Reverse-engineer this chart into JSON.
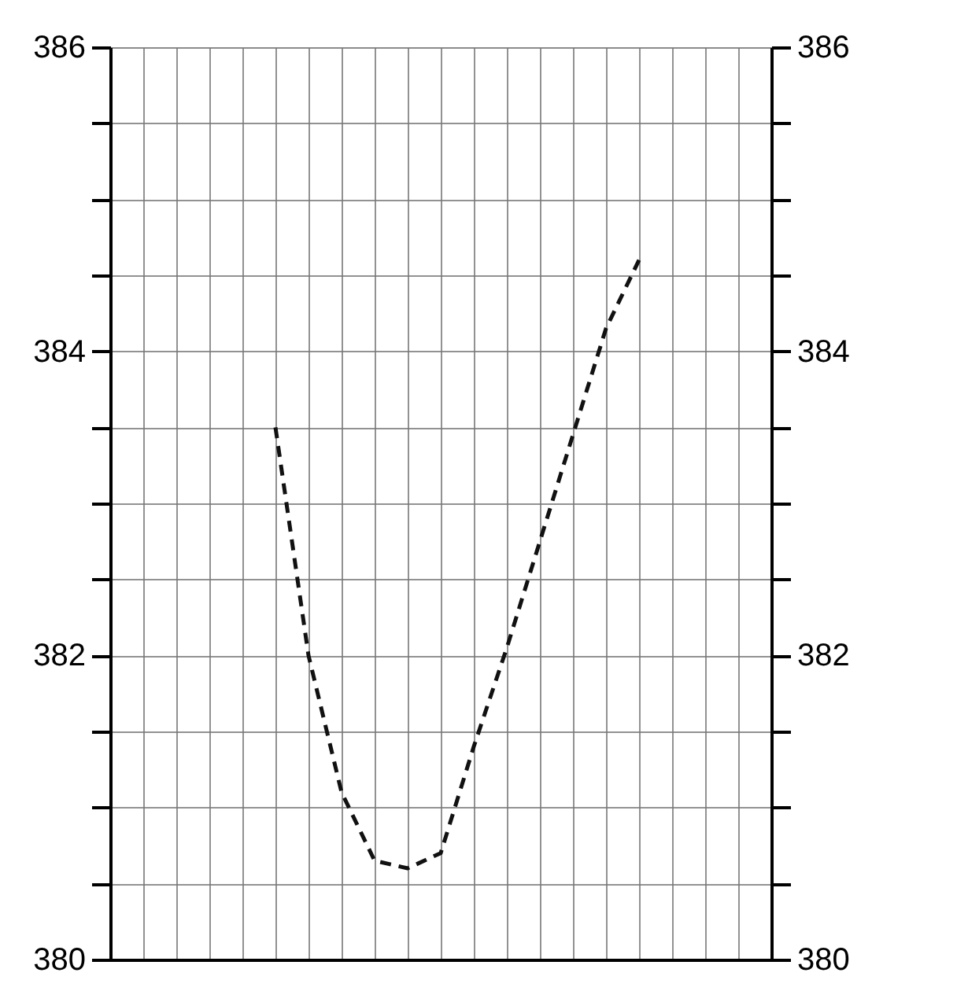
{
  "chart_data": {
    "type": "line",
    "categories": [
      null,
      null,
      null,
      null,
      null,
      null,
      null,
      null,
      null,
      null,
      null,
      null,
      null,
      null,
      null,
      null,
      null,
      null,
      null,
      null,
      null
    ],
    "series": [
      {
        "color": "#111111",
        "values": [
          null,
          null,
          null,
          null,
          null,
          383.5,
          382.0,
          381.1,
          380.65,
          380.6,
          380.7,
          381.4,
          382.05,
          382.75,
          383.45,
          384.15,
          384.6,
          null,
          null,
          null,
          null
        ]
      }
    ],
    "line_style": "dashed",
    "marker": "none",
    "grid": true,
    "tick_labels": "y",
    "ylim": [
      380,
      386
    ],
    "yticks": [
      380,
      {
        "value": 380.5,
        "label": null
      },
      {
        "value": 381,
        "label": null
      },
      {
        "value": 381.5,
        "label": null
      },
      382,
      {
        "value": 382.5,
        "label": null
      },
      {
        "value": 383,
        "label": null
      },
      {
        "value": 383.5,
        "label": null
      },
      384,
      {
        "value": 384.5,
        "label": null
      },
      {
        "value": 385,
        "label": null
      },
      {
        "value": 385.5,
        "label": null
      },
      386
    ],
    "y2lim": [
      380,
      386
    ],
    "y2ticks": [
      380,
      {
        "value": 380.5,
        "label": null
      },
      {
        "value": 381,
        "label": null
      },
      {
        "value": 381.5,
        "label": null
      },
      382,
      {
        "value": 382.5,
        "label": null
      },
      {
        "value": 383,
        "label": null
      },
      {
        "value": 383.5,
        "label": null
      },
      384,
      {
        "value": 384.5,
        "label": null
      },
      {
        "value": 385,
        "label": null
      },
      {
        "value": 385.5,
        "label": null
      },
      386
    ]
  }
}
